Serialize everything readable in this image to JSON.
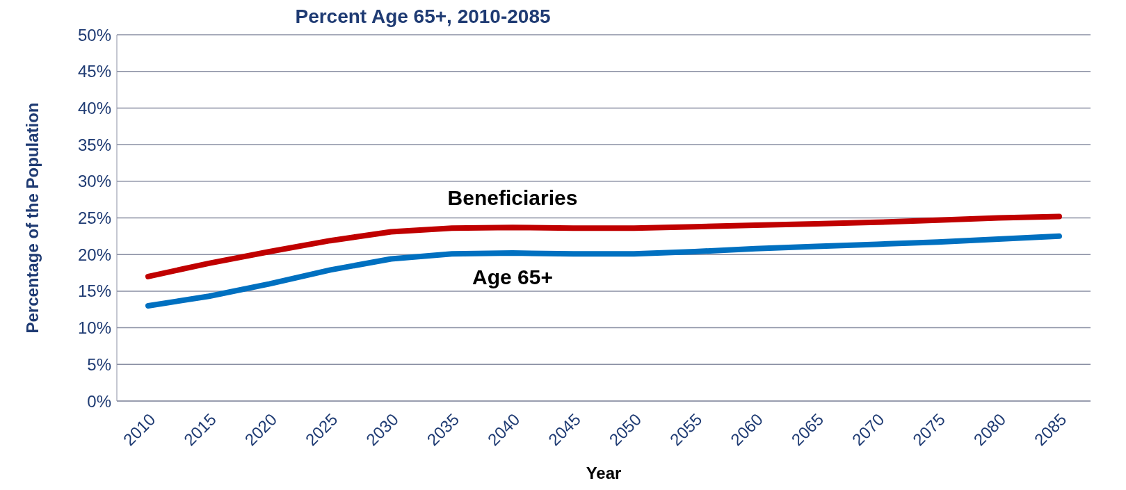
{
  "chart_data": {
    "type": "line",
    "title": "Percent Age 65+, 2010-2085",
    "xlabel": "Year",
    "ylabel": "Percentage of the Population",
    "categories": [
      "2010",
      "2015",
      "2020",
      "2025",
      "2030",
      "2035",
      "2040",
      "2045",
      "2050",
      "2055",
      "2060",
      "2065",
      "2070",
      "2075",
      "2080",
      "2085"
    ],
    "series": [
      {
        "name": "Beneficiaries",
        "color": "#c00000",
        "values": [
          17.0,
          18.8,
          20.4,
          21.9,
          23.1,
          23.6,
          23.7,
          23.6,
          23.6,
          23.8,
          24.0,
          24.2,
          24.4,
          24.7,
          25.0,
          25.2
        ]
      },
      {
        "name": "Age 65+",
        "color": "#0070c0",
        "values": [
          13.0,
          14.3,
          16.0,
          17.9,
          19.4,
          20.1,
          20.2,
          20.1,
          20.1,
          20.4,
          20.8,
          21.1,
          21.4,
          21.7,
          22.1,
          22.5
        ]
      }
    ],
    "ylim": [
      0,
      50
    ],
    "yticks": [
      {
        "value": 0,
        "label": "0%"
      },
      {
        "value": 5,
        "label": "5%"
      },
      {
        "value": 10,
        "label": "10%"
      },
      {
        "value": 15,
        "label": "15%"
      },
      {
        "value": 20,
        "label": "20%"
      },
      {
        "value": 25,
        "label": "25%"
      },
      {
        "value": 30,
        "label": "30%"
      },
      {
        "value": 35,
        "label": "35%"
      },
      {
        "value": 40,
        "label": "40%"
      },
      {
        "value": 45,
        "label": "45%"
      },
      {
        "value": 50,
        "label": "50%"
      }
    ],
    "grid": "y",
    "legend": false,
    "marker": "none",
    "line_style": "solid"
  }
}
